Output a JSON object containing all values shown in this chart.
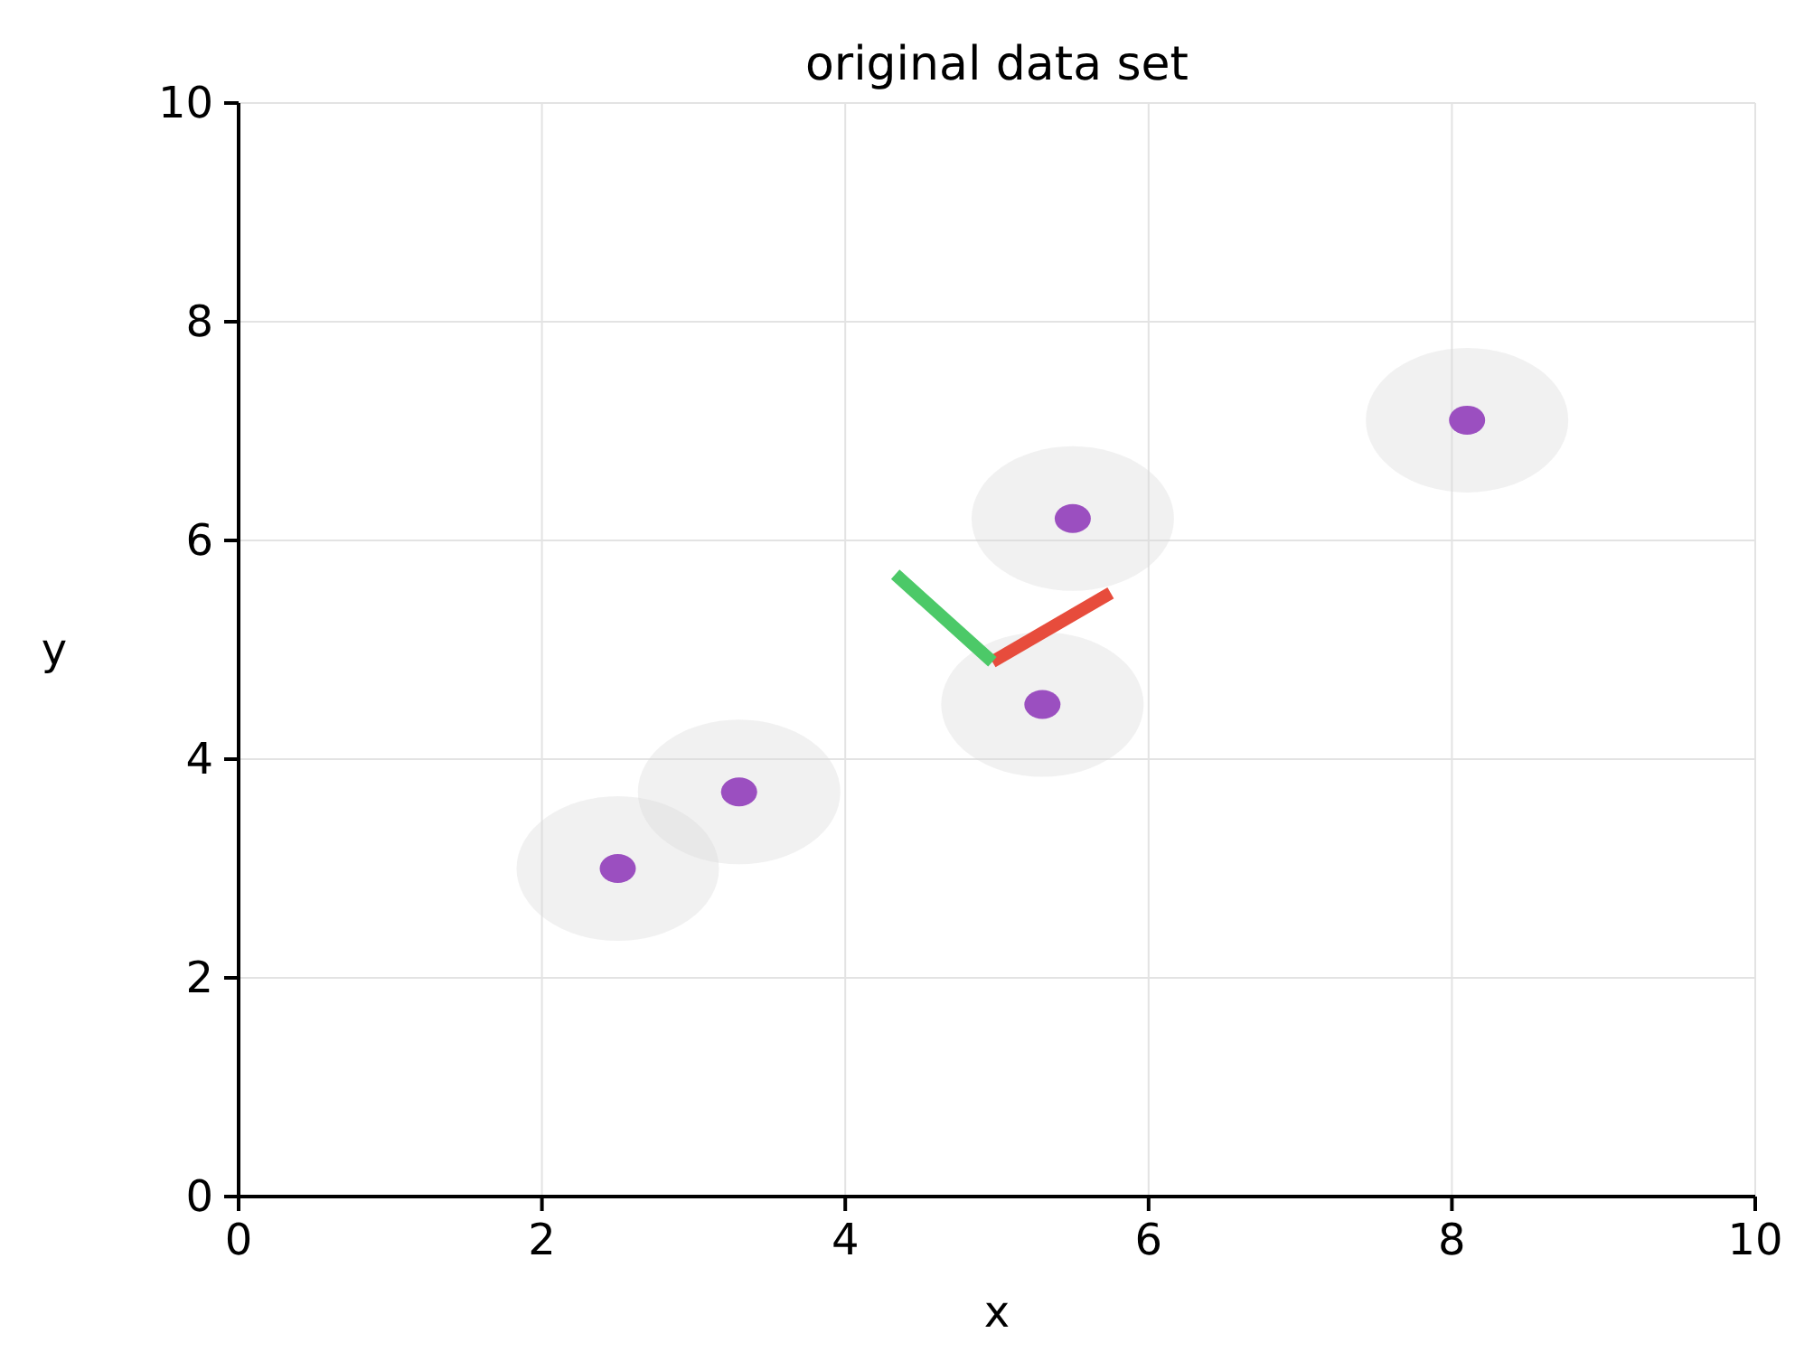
{
  "chart_data": {
    "type": "scatter",
    "title": "original data set",
    "xlabel": "x",
    "ylabel": "y",
    "xlim": [
      0,
      10
    ],
    "ylim": [
      0,
      10
    ],
    "xticks": [
      0,
      2,
      4,
      6,
      8,
      10
    ],
    "yticks": [
      0,
      2,
      4,
      6,
      8,
      10
    ],
    "grid": true,
    "series": [
      {
        "color": "#9b4fc0",
        "marker": "circle",
        "x": [
          2.5,
          3.3,
          5.3,
          5.5,
          8.1
        ],
        "values": [
          3.0,
          3.7,
          4.5,
          6.2,
          7.1
        ]
      },
      {
        "type": "line",
        "color": "#e74c3c",
        "x": [
          4.97,
          5.75
        ],
        "values": [
          4.89,
          5.52
        ]
      },
      {
        "type": "line",
        "color": "#4cc968",
        "x": [
          4.97,
          4.33
        ],
        "values": [
          4.89,
          5.69
        ]
      }
    ]
  }
}
